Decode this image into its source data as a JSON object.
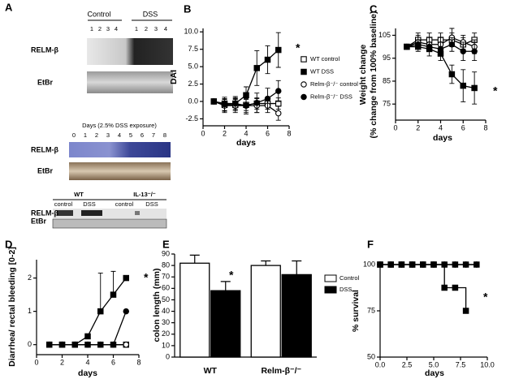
{
  "panel_a": {
    "label": "A",
    "blot1": {
      "groups": [
        "Control",
        "DSS"
      ],
      "lanes": [
        "1",
        "2",
        "3",
        "4",
        "1",
        "2",
        "3",
        "4"
      ],
      "rows": [
        "RELM-β",
        "EtBr"
      ]
    },
    "blot2": {
      "title": "Days (2.5% DSS exposure)",
      "lanes": [
        "0",
        "1",
        "2",
        "3",
        "4",
        "5",
        "6",
        "7",
        "8"
      ],
      "rows": [
        "RELM-β",
        "EtBr"
      ]
    },
    "blot3": {
      "groups": [
        "WT",
        "IL-13⁻/⁻"
      ],
      "subgroups": [
        "control",
        "DSS",
        "control",
        "DSS"
      ],
      "rows": [
        "RELM-β",
        "EtBr"
      ]
    }
  },
  "chart_data": [
    {
      "type": "line",
      "panel": "B",
      "xlabel": "days",
      "ylabel": "DAI",
      "annotation": "*",
      "x": [
        1,
        2,
        3,
        4,
        5,
        6,
        7
      ],
      "xlim": [
        0,
        8
      ],
      "xticks": [
        0,
        2,
        4,
        6,
        8
      ],
      "ylim": [
        -3.5,
        10.5
      ],
      "yticks": [
        {
          "value": -2.5,
          "label": "-2.5"
        },
        {
          "value": 0,
          "label": "0.0"
        },
        2.5,
        {
          "value": 5,
          "label": "5.0"
        },
        7.5,
        {
          "value": 10,
          "label": "10.0"
        }
      ],
      "series": [
        {
          "name": "WT control",
          "marker": "square",
          "filled": false,
          "color": "#000000",
          "values": [
            0,
            -0.5,
            -0.5,
            -0.5,
            -0.3,
            -0.3,
            -0.3
          ],
          "errors": [
            0,
            0.8,
            0.8,
            0.8,
            0.8,
            0.8,
            0.8
          ]
        },
        {
          "name": "WT DSS",
          "marker": "square",
          "filled": true,
          "color": "#000000",
          "values": [
            0,
            -0.3,
            -0.3,
            0.9,
            4.8,
            6.0,
            7.4
          ],
          "errors": [
            0,
            0.6,
            0.8,
            1.2,
            2.5,
            2.0,
            2.5
          ]
        },
        {
          "name": "Relm-β⁻/⁻ control",
          "marker": "circle",
          "filled": false,
          "color": "#000000",
          "values": [
            0,
            -0.6,
            -0.6,
            -0.6,
            -0.6,
            -0.6,
            -1.7
          ],
          "errors": [
            0,
            1,
            1,
            1,
            1,
            1,
            1
          ]
        },
        {
          "name": "Relm-β⁻/⁻ DSS",
          "marker": "circle",
          "filled": true,
          "color": "#000000",
          "values": [
            0,
            -0.4,
            -0.3,
            -0.6,
            -0.2,
            0.4,
            1.5
          ],
          "errors": [
            0,
            1,
            1,
            1.2,
            1.4,
            1.5,
            1.5
          ]
        }
      ]
    },
    {
      "type": "line",
      "panel": "C",
      "xlabel": "days",
      "ylabel": [
        "Weight change",
        "(% change from 100% baseline)"
      ],
      "annotation": "*",
      "x": [
        1,
        2,
        3,
        4,
        5,
        6,
        7
      ],
      "xlim": [
        0,
        8
      ],
      "xticks": [
        0,
        2,
        4,
        6,
        8
      ],
      "ylim": [
        68,
        108
      ],
      "yticks": [
        75,
        85,
        95,
        105
      ],
      "series": [
        {
          "marker": "square",
          "filled": false,
          "color": "#000000",
          "values": [
            100,
            103,
            103,
            103,
            103,
            101,
            103
          ],
          "errors": [
            0,
            3,
            3,
            3,
            3,
            3,
            3
          ]
        },
        {
          "marker": "square",
          "filled": true,
          "color": "#000000",
          "values": [
            100,
            100,
            99,
            97,
            88,
            83,
            82
          ],
          "errors": [
            0,
            2,
            3,
            3,
            4,
            7,
            7
          ]
        },
        {
          "marker": "circle",
          "filled": false,
          "color": "#000000",
          "values": [
            100,
            102,
            101,
            101,
            104,
            102,
            100
          ],
          "errors": [
            0,
            3,
            3,
            3,
            4,
            3,
            3
          ]
        },
        {
          "marker": "circle",
          "filled": true,
          "color": "#000000",
          "values": [
            100,
            101,
            100,
            99,
            101,
            98,
            98
          ],
          "errors": [
            0,
            2,
            2,
            3,
            3,
            4,
            4
          ]
        }
      ]
    },
    {
      "type": "line",
      "panel": "D",
      "xlabel": "days",
      "ylabel": "Diarrhea/ rectal bleeding [0-2]",
      "annotation": "*",
      "x": [
        1,
        2,
        3,
        4,
        5,
        6,
        7
      ],
      "xlim": [
        0,
        8
      ],
      "xticks": [
        0,
        2,
        4,
        6,
        8
      ],
      "ylim": [
        -0.3,
        2.55
      ],
      "yticks": [
        0,
        1,
        2
      ],
      "error_direction": "up",
      "series": [
        {
          "marker": "square",
          "filled": false,
          "color": "#000000",
          "values": [
            0,
            0,
            0,
            0,
            0,
            0,
            0
          ]
        },
        {
          "marker": "circle",
          "filled": false,
          "color": "#000000",
          "values": [
            0,
            0,
            0,
            0,
            0,
            0,
            0
          ]
        },
        {
          "marker": "circle",
          "filled": true,
          "color": "#000000",
          "values": [
            0,
            0,
            0,
            0,
            0,
            0,
            1
          ]
        },
        {
          "marker": "square",
          "filled": true,
          "color": "#000000",
          "values": [
            0,
            0,
            0,
            0.25,
            1,
            1.5,
            2
          ],
          "errors": [
            null,
            null,
            null,
            null,
            1.15,
            0.7,
            null
          ]
        }
      ]
    },
    {
      "type": "bar",
      "panel": "E",
      "ylabel": "colon length (mm)",
      "annotation": "*",
      "categories": [
        "WT",
        "Relm-β⁻/⁻"
      ],
      "ylim": [
        0,
        90
      ],
      "yticks": [
        0,
        10,
        20,
        30,
        40,
        50,
        60,
        70,
        80,
        90
      ],
      "series": [
        {
          "name": "Control",
          "color": "#ffffff",
          "values": [
            82,
            80
          ],
          "errors": [
            7,
            4
          ]
        },
        {
          "name": "DSS",
          "color": "#000000",
          "values": [
            58,
            72
          ],
          "errors": [
            8,
            12
          ]
        }
      ]
    },
    {
      "type": "line",
      "panel": "F",
      "xlabel": "days",
      "ylabel": "% survival",
      "annotation": "*",
      "step": true,
      "xlim": [
        0,
        10
      ],
      "xticks": [
        {
          "value": 0,
          "label": "0.0"
        },
        2.5,
        {
          "value": 5,
          "label": "5.0"
        },
        7.5,
        {
          "value": 10,
          "label": "10.0"
        }
      ],
      "ylim": [
        50,
        100
      ],
      "yticks": [
        50,
        75,
        100
      ],
      "series": [
        {
          "marker": "square",
          "filled": false,
          "color": "#000000",
          "x": [
            0,
            1,
            2,
            3,
            4,
            5,
            6,
            7,
            8,
            9
          ],
          "values": [
            100,
            100,
            100,
            100,
            100,
            100,
            100,
            100,
            100,
            100
          ]
        },
        {
          "marker": "circle",
          "filled": false,
          "color": "#000000",
          "x": [
            0,
            1,
            2,
            3,
            4,
            5,
            6,
            7,
            8,
            9
          ],
          "values": [
            100,
            100,
            100,
            100,
            100,
            100,
            100,
            100,
            100,
            100
          ]
        },
        {
          "marker": "circle",
          "filled": true,
          "color": "#000000",
          "x": [
            0,
            1,
            2,
            3,
            4,
            5,
            6,
            7,
            8,
            9
          ],
          "values": [
            100,
            100,
            100,
            100,
            100,
            100,
            100,
            100,
            100,
            100
          ]
        },
        {
          "marker": "square",
          "filled": true,
          "color": "#000000",
          "x": [
            0,
            1,
            2,
            3,
            4,
            5,
            6,
            7,
            8
          ],
          "values": [
            100,
            100,
            100,
            100,
            100,
            100,
            87.5,
            87.5,
            75
          ]
        }
      ]
    }
  ]
}
